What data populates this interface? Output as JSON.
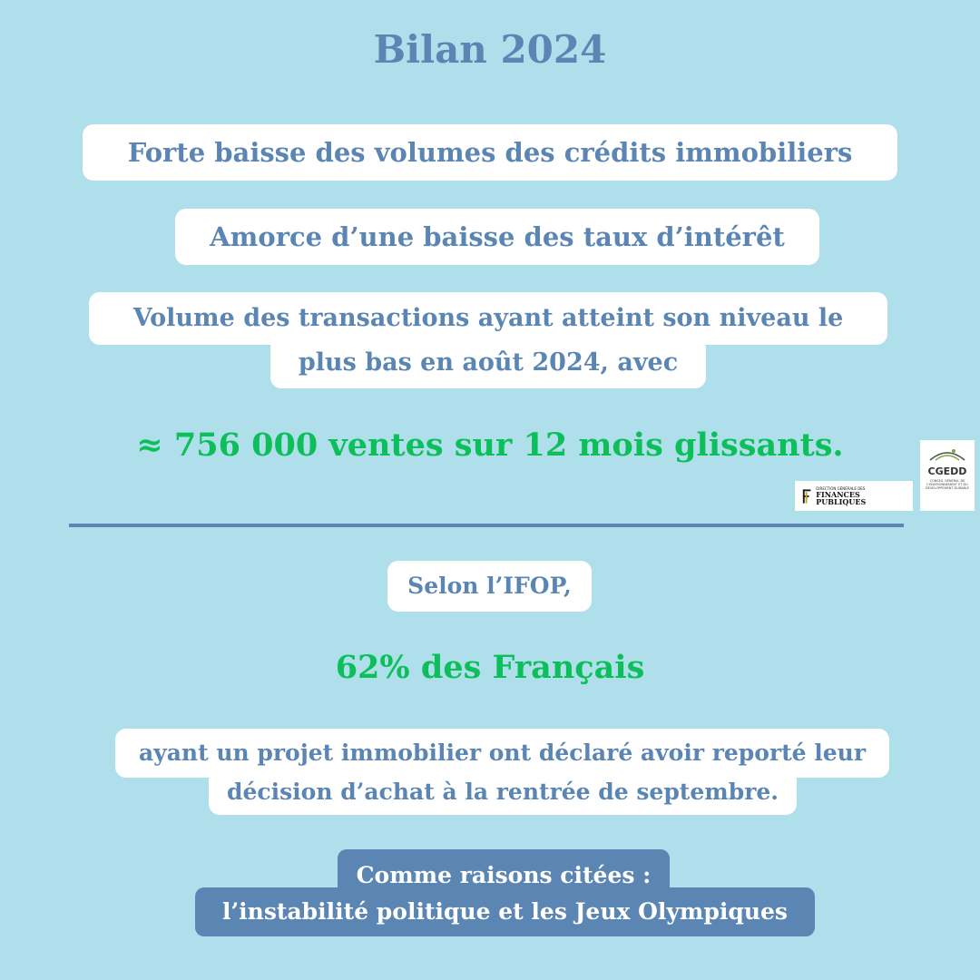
{
  "title": "Bilan 2024",
  "points": {
    "credits": "Forte baisse des volumes des crédits immobiliers",
    "taux": "Amorce d’une baisse des taux d’intérêt",
    "transactions_line1": "Volume des transactions ayant atteint son niveau le",
    "transactions_line2": "plus bas en août 2024, avec"
  },
  "highlight_sales": "≈ 756 000 ventes sur 12 mois glissants.",
  "ifop": {
    "intro": "Selon l’IFOP,",
    "highlight": "62% des Français",
    "detail_line1": "ayant un projet immobilier ont déclaré avoir reporté leur",
    "detail_line2": "décision d’achat à la rentrée de septembre."
  },
  "reasons": {
    "line1": "Comme raisons citées :",
    "line2": "l’instabilité politique et les Jeux Olympiques"
  },
  "logos": {
    "dgfip": {
      "small": "DIRECTION GÉNÉRALE DES",
      "big": "FINANCES PUBLIQUES"
    },
    "cgedd": {
      "name": "CGEDD",
      "sub": "CONSEIL GÉNÉRAL DE L'ENVIRONNEMENT ET DU DÉVELOPPEMENT DURABLE"
    }
  },
  "colors": {
    "background": "#afdfea",
    "primary_blue": "#5b86b3",
    "highlight_green": "#0cbf5a"
  }
}
